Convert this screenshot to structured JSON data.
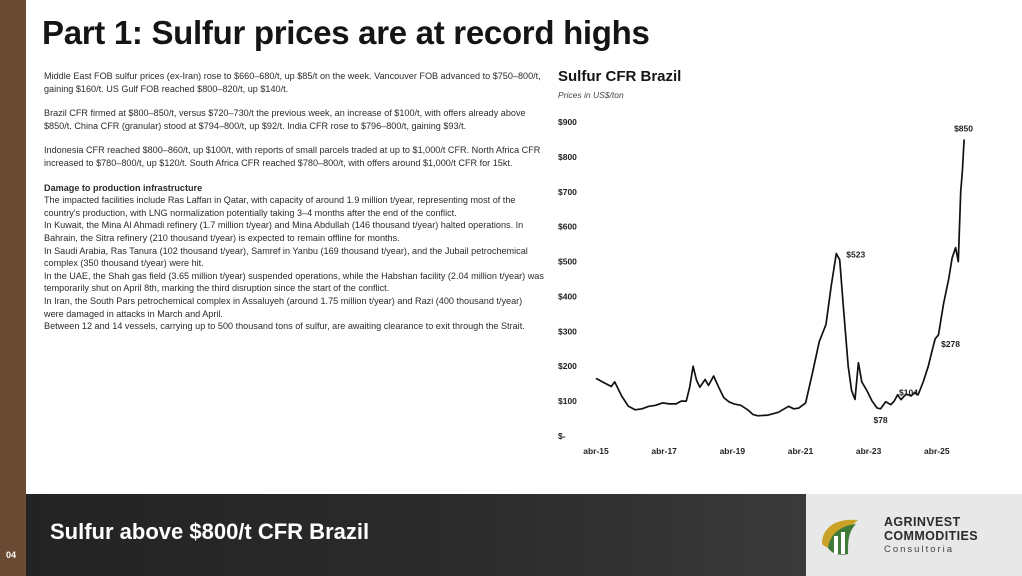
{
  "page": {
    "title": "Part 1: Sulfur prices are at record highs",
    "page_number": "04",
    "footer_text": "Sulfur above $800/t CFR Brazil",
    "colors": {
      "sidebar": "#6b4a33",
      "footer_dark": "#2b2b2b",
      "chart_line": "#111111"
    }
  },
  "brand": {
    "line1": "AGRINVEST",
    "line2": "COMMODITIES",
    "line3": "Consultoria",
    "logo_icon": "agrinvest-leaf-logo"
  },
  "body": {
    "paragraphs": [
      "Middle East FOB sulfur prices (ex-Iran) rose to $660–680/t, up $85/t on the week. Vancouver FOB advanced to $750–800/t, gaining $160/t. US Gulf FOB reached $800–820/t, up $140/t.",
      "Brazil CFR firmed at $800–850/t, versus $720–730/t the previous week, an increase of $100/t, with offers already above $850/t. China CFR (granular) stood at $794–800/t, up $92/t. India CFR rose to $796–800/t, gaining $93/t.",
      "Indonesia CFR reached $800–860/t, up $100/t, with reports of small parcels traded at up to $1,000/t CFR. North Africa CFR increased to $780–800/t, up $120/t. South Africa CFR reached $780–800/t, with offers around $1,000/t CFR for 15kt."
    ],
    "damage_title": "Damage to production infrastructure",
    "damage_lines": [
      "The impacted facilities include Ras Laffan in Qatar, with capacity of around 1.9 million t/year, representing most of the country's production, with LNG normalization potentially taking 3–4 months after the end of the conflict.",
      "In Kuwait, the Mina Al Ahmadi refinery (1.7 million t/year) and Mina Abdullah (146 thousand t/year) halted operations. In Bahrain, the Sitra refinery (210 thousand t/year) is expected to remain offline for months.",
      "In Saudi Arabia, Ras Tanura (102 thousand t/year), Samref in Yanbu (169 thousand t/year), and the Jubail petrochemical complex (350 thousand t/year) were hit.",
      "In the UAE, the Shah gas field (3.65 million t/year) suspended operations, while the Habshan facility (2.04 million t/year) was temporarily shut on April 8th, marking the third disruption since the start of the conflict.",
      "In Iran, the South Pars petrochemical complex in Assaluyeh (around 1.75 million t/year) and Razi (400 thousand t/year) were damaged in attacks in March and April.",
      "Between 12 and 14 vessels, carrying up to 500 thousand tons of sulfur, are awaiting clearance to exit through the Strait."
    ]
  },
  "chart_data": {
    "type": "line",
    "title": "Sulfur CFR Brazil",
    "subtitle": "Prices in US$/ton",
    "ylim": [
      0,
      900
    ],
    "ytick_values": [
      0,
      100,
      200,
      300,
      400,
      500,
      600,
      700,
      800,
      900
    ],
    "ytick_labels": [
      "$-",
      "$100",
      "$200",
      "$300",
      "$400",
      "$500",
      "$600",
      "$700",
      "$800",
      "$900"
    ],
    "xlim": [
      2015.25,
      2026.4
    ],
    "xtick_values": [
      2015.25,
      2017.25,
      2019.25,
      2021.25,
      2023.25,
      2025.25
    ],
    "xtick_labels": [
      "abr-15",
      "abr-17",
      "abr-19",
      "abr-21",
      "abr-23",
      "abr-25"
    ],
    "grid": false,
    "legend": "none",
    "series": [
      {
        "points": [
          [
            2015.25,
            165
          ],
          [
            2015.5,
            152
          ],
          [
            2015.7,
            142
          ],
          [
            2015.8,
            155
          ],
          [
            2016.0,
            115
          ],
          [
            2016.2,
            85
          ],
          [
            2016.4,
            75
          ],
          [
            2016.6,
            78
          ],
          [
            2016.8,
            85
          ],
          [
            2017.0,
            88
          ],
          [
            2017.2,
            95
          ],
          [
            2017.4,
            92
          ],
          [
            2017.6,
            92
          ],
          [
            2017.75,
            100
          ],
          [
            2017.9,
            100
          ],
          [
            2018.0,
            140
          ],
          [
            2018.1,
            200
          ],
          [
            2018.2,
            160
          ],
          [
            2018.3,
            140
          ],
          [
            2018.45,
            162
          ],
          [
            2018.55,
            145
          ],
          [
            2018.7,
            172
          ],
          [
            2018.85,
            140
          ],
          [
            2019.0,
            110
          ],
          [
            2019.15,
            98
          ],
          [
            2019.3,
            92
          ],
          [
            2019.5,
            88
          ],
          [
            2019.7,
            75
          ],
          [
            2019.85,
            62
          ],
          [
            2020.0,
            58
          ],
          [
            2020.3,
            60
          ],
          [
            2020.6,
            68
          ],
          [
            2020.9,
            85
          ],
          [
            2021.05,
            78
          ],
          [
            2021.2,
            80
          ],
          [
            2021.4,
            95
          ],
          [
            2021.6,
            180
          ],
          [
            2021.8,
            270
          ],
          [
            2022.0,
            320
          ],
          [
            2022.15,
            430
          ],
          [
            2022.3,
            523
          ],
          [
            2022.4,
            505
          ],
          [
            2022.5,
            380
          ],
          [
            2022.65,
            200
          ],
          [
            2022.75,
            130
          ],
          [
            2022.85,
            105
          ],
          [
            2022.95,
            210
          ],
          [
            2023.05,
            155
          ],
          [
            2023.2,
            130
          ],
          [
            2023.35,
            100
          ],
          [
            2023.5,
            80
          ],
          [
            2023.6,
            78
          ],
          [
            2023.75,
            98
          ],
          [
            2023.9,
            90
          ],
          [
            2024.0,
            100
          ],
          [
            2024.1,
            118
          ],
          [
            2024.2,
            104
          ],
          [
            2024.35,
            120
          ],
          [
            2024.5,
            115
          ],
          [
            2024.6,
            125
          ],
          [
            2024.7,
            118
          ],
          [
            2024.85,
            155
          ],
          [
            2025.0,
            200
          ],
          [
            2025.1,
            240
          ],
          [
            2025.2,
            278
          ],
          [
            2025.3,
            290
          ],
          [
            2025.45,
            380
          ],
          [
            2025.6,
            450
          ],
          [
            2025.7,
            510
          ],
          [
            2025.8,
            540
          ],
          [
            2025.88,
            500
          ],
          [
            2025.95,
            700
          ],
          [
            2026.0,
            760
          ],
          [
            2026.05,
            850
          ]
        ]
      }
    ],
    "annotations": [
      {
        "label": "$850",
        "x": 2026.05,
        "y": 850
      },
      {
        "label": "$523",
        "x": 2022.3,
        "y": 523
      },
      {
        "label": "$278",
        "x": 2025.2,
        "y": 278
      },
      {
        "label": "$104",
        "x": 2024.2,
        "y": 104
      },
      {
        "label": "$78",
        "x": 2023.6,
        "y": 78
      }
    ]
  }
}
